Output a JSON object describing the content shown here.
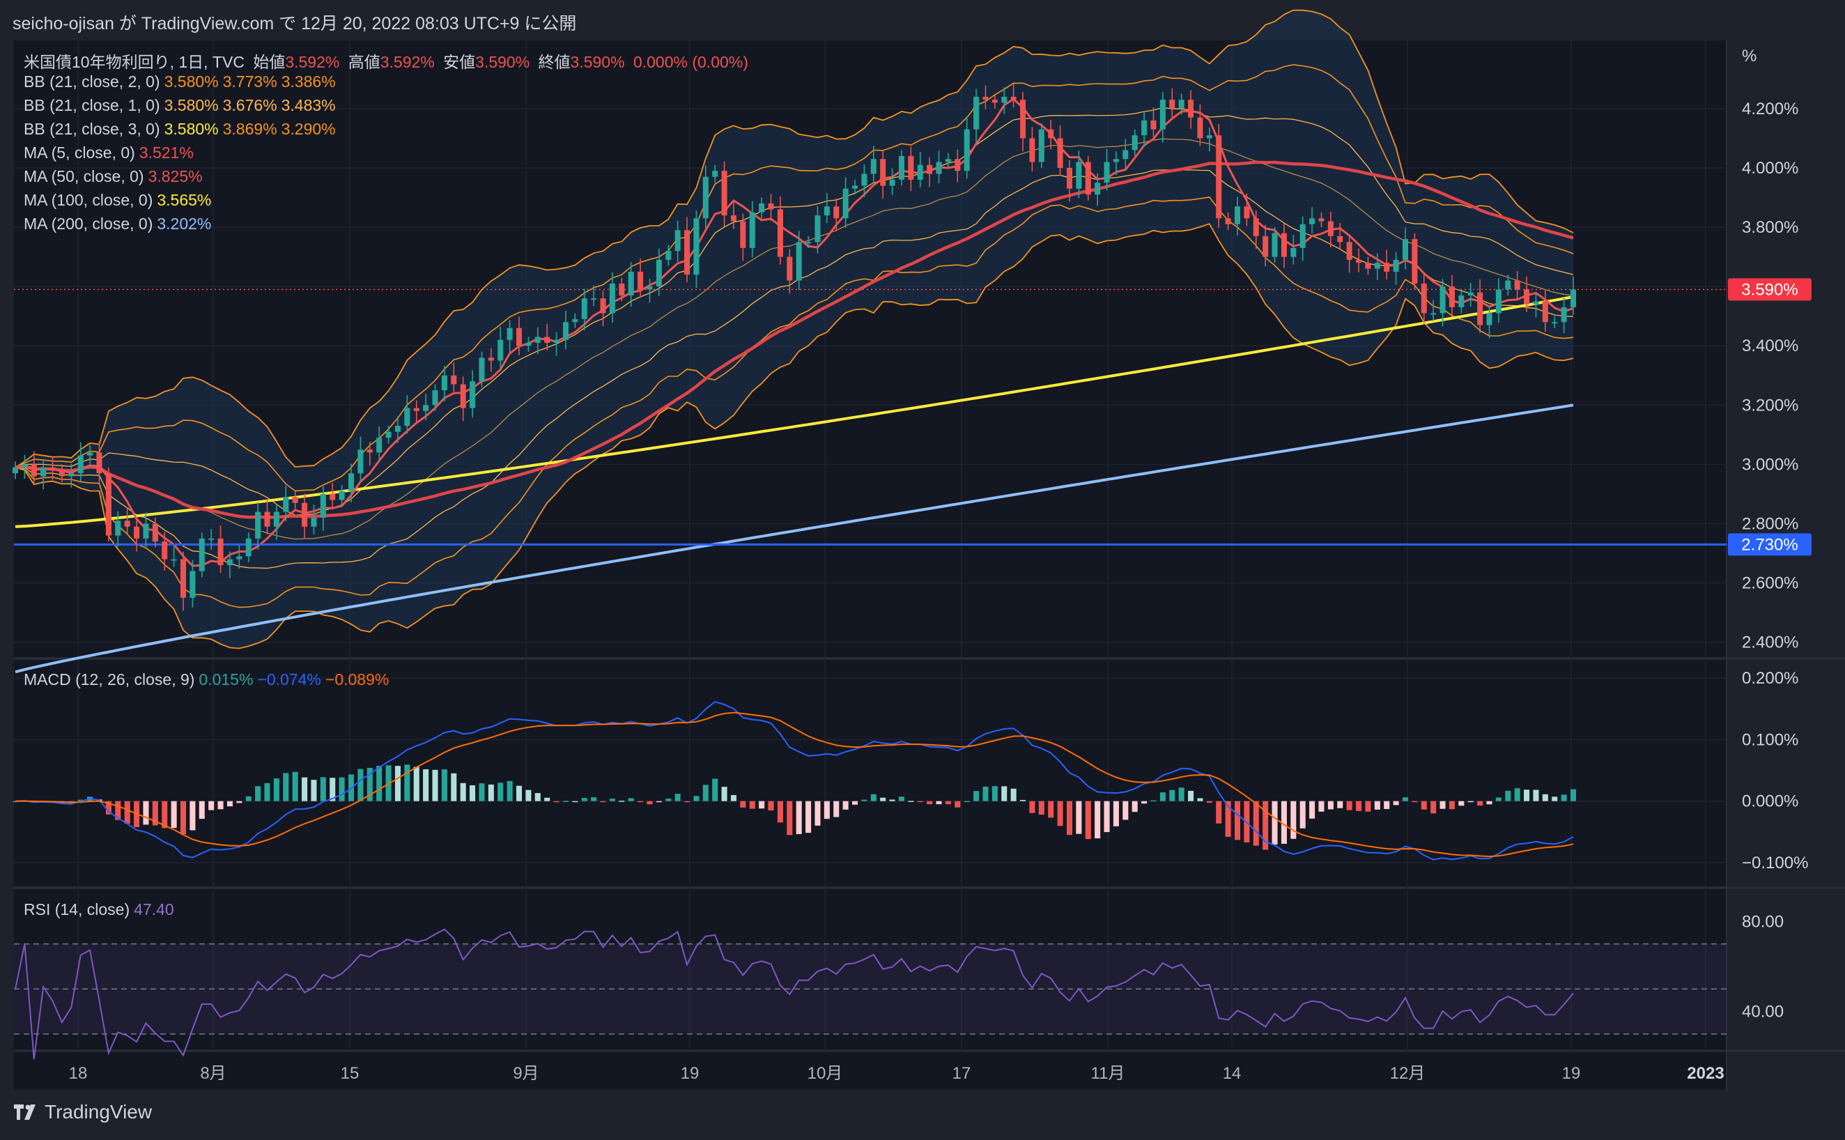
{
  "header": {
    "published": "seicho-ojisan が TradingView.com で 12月 20, 2022 08:03 UTC+9 に公開"
  },
  "legend": {
    "main": {
      "symbol": "米国債10年物利回り, 1日, TVC",
      "open_label": "始値",
      "open": "3.592%",
      "high_label": "高値",
      "high": "3.592%",
      "low_label": "安値",
      "low": "3.590%",
      "close_label": "終値",
      "close": "3.590%",
      "change": "0.000% (0.00%)"
    },
    "bb2": {
      "label": "BB (21, close, 2, 0)",
      "v1": "3.580%",
      "v2": "3.773%",
      "v3": "3.386%"
    },
    "bb1": {
      "label": "BB (21, close, 1, 0)",
      "v1": "3.580%",
      "v2": "3.676%",
      "v3": "3.483%"
    },
    "bb3": {
      "label": "BB (21, close, 3, 0)",
      "v1": "3.580%",
      "v2": "3.869%",
      "v3": "3.290%"
    },
    "ma5": {
      "label": "MA (5, close, 0)",
      "v": "3.521%"
    },
    "ma50": {
      "label": "MA (50, close, 0)",
      "v": "3.825%"
    },
    "ma100": {
      "label": "MA (100, close, 0)",
      "v": "3.565%"
    },
    "ma200": {
      "label": "MA (200, close, 0)",
      "v": "3.202%"
    },
    "macd": {
      "label": "MACD (12, 26, close, 9)",
      "hist": "0.015%",
      "macd": "−0.074%",
      "signal": "−0.089%"
    },
    "rsi": {
      "label": "RSI (14, close)",
      "v": "47.40"
    }
  },
  "footer": {
    "brand": "TradingView"
  },
  "colors": {
    "bg": "#1e222d",
    "up": "#26a69a",
    "down": "#ef5350",
    "ma5": "#ef5350",
    "ma50": "#e0454a",
    "ma100": "#ffeb3b",
    "ma200": "#90bff9",
    "bb": "#f7931a",
    "macd": "#2962ff",
    "signal": "#ff6d00",
    "rsi": "#7e57c2",
    "hline": "#2962ff"
  },
  "chart_data": [
    {
      "type": "candlestick",
      "title": "米国債10年物利回り, 1日, TVC",
      "unit": "%",
      "y_axis": {
        "label": "%",
        "ticks": [
          "4.200%",
          "4.000%",
          "3.800%",
          "3.600%",
          "3.400%",
          "3.200%",
          "3.000%",
          "2.800%",
          "2.600%",
          "2.400%"
        ],
        "range": [
          2.35,
          4.4
        ]
      },
      "x_axis": {
        "ticks": [
          "18",
          "8月",
          "15",
          "9月",
          "19",
          "10月",
          "17",
          "11月",
          "14",
          "12月",
          "19",
          "2023"
        ]
      },
      "last_price_label": "3.590%",
      "horizontal_line": {
        "value": 2.73,
        "label": "2.730%"
      },
      "close": [
        2.99,
        3.0,
        2.96,
        2.99,
        2.98,
        2.96,
        2.97,
        3.03,
        3.04,
        2.97,
        2.76,
        2.81,
        2.79,
        2.75,
        2.8,
        2.74,
        2.68,
        2.68,
        2.55,
        2.64,
        2.75,
        2.75,
        2.66,
        2.68,
        2.69,
        2.75,
        2.84,
        2.79,
        2.84,
        2.89,
        2.87,
        2.79,
        2.82,
        2.9,
        2.88,
        2.91,
        2.97,
        3.05,
        3.04,
        3.09,
        3.11,
        3.13,
        3.19,
        3.18,
        3.2,
        3.25,
        3.3,
        3.27,
        3.19,
        3.28,
        3.36,
        3.35,
        3.42,
        3.46,
        3.4,
        3.41,
        3.43,
        3.41,
        3.42,
        3.48,
        3.49,
        3.56,
        3.56,
        3.51,
        3.61,
        3.57,
        3.65,
        3.59,
        3.6,
        3.69,
        3.72,
        3.79,
        3.64,
        3.83,
        3.97,
        3.99,
        3.84,
        3.82,
        3.73,
        3.85,
        3.88,
        3.86,
        3.7,
        3.62,
        3.75,
        3.75,
        3.84,
        3.87,
        3.83,
        3.93,
        3.94,
        3.98,
        4.03,
        3.94,
        3.96,
        4.04,
        3.96,
        4.01,
        3.98,
        4.02,
        4.03,
        3.99,
        4.13,
        4.24,
        4.23,
        4.22,
        4.24,
        4.23,
        4.1,
        4.02,
        4.13,
        4.1,
        4.0,
        3.93,
        4.02,
        3.91,
        3.95,
        4.02,
        4.03,
        4.06,
        4.11,
        4.16,
        4.13,
        4.23,
        4.2,
        4.23,
        4.17,
        4.1,
        4.11,
        3.83,
        3.81,
        3.87,
        3.83,
        3.77,
        3.7,
        3.78,
        3.7,
        3.73,
        3.81,
        3.83,
        3.82,
        3.77,
        3.75,
        3.69,
        3.68,
        3.66,
        3.68,
        3.65,
        3.69,
        3.76,
        3.61,
        3.51,
        3.51,
        3.6,
        3.53,
        3.57,
        3.58,
        3.47,
        3.51,
        3.59,
        3.62,
        3.59,
        3.54,
        3.55,
        3.48,
        3.48,
        3.53,
        3.59
      ],
      "open": [
        2.97,
        2.99,
        3.0,
        2.96,
        2.99,
        2.98,
        2.96,
        2.97,
        3.03,
        3.04,
        2.97,
        2.76,
        2.81,
        2.79,
        2.75,
        2.8,
        2.74,
        2.68,
        2.68,
        2.55,
        2.64,
        2.75,
        2.75,
        2.66,
        2.68,
        2.69,
        2.75,
        2.84,
        2.79,
        2.84,
        2.89,
        2.87,
        2.79,
        2.82,
        2.9,
        2.88,
        2.91,
        2.97,
        3.05,
        3.04,
        3.09,
        3.11,
        3.13,
        3.19,
        3.18,
        3.2,
        3.25,
        3.3,
        3.27,
        3.19,
        3.28,
        3.36,
        3.35,
        3.42,
        3.46,
        3.4,
        3.41,
        3.43,
        3.41,
        3.42,
        3.48,
        3.49,
        3.56,
        3.56,
        3.51,
        3.61,
        3.57,
        3.65,
        3.59,
        3.6,
        3.69,
        3.72,
        3.79,
        3.64,
        3.83,
        3.97,
        3.99,
        3.84,
        3.82,
        3.73,
        3.85,
        3.88,
        3.86,
        3.7,
        3.62,
        3.75,
        3.75,
        3.84,
        3.87,
        3.83,
        3.93,
        3.94,
        3.98,
        4.03,
        3.94,
        3.96,
        4.04,
        3.96,
        4.01,
        3.98,
        4.02,
        4.03,
        3.99,
        4.13,
        4.24,
        4.23,
        4.22,
        4.24,
        4.23,
        4.1,
        4.02,
        4.13,
        4.1,
        4.0,
        3.93,
        4.02,
        3.91,
        3.95,
        4.02,
        4.03,
        4.06,
        4.11,
        4.16,
        4.13,
        4.23,
        4.2,
        4.23,
        4.17,
        4.1,
        4.11,
        3.83,
        3.81,
        3.87,
        3.83,
        3.77,
        3.7,
        3.78,
        3.7,
        3.73,
        3.81,
        3.83,
        3.82,
        3.77,
        3.75,
        3.69,
        3.68,
        3.66,
        3.68,
        3.65,
        3.69,
        3.76,
        3.61,
        3.51,
        3.51,
        3.6,
        3.53,
        3.57,
        3.58,
        3.47,
        3.51,
        3.59,
        3.62,
        3.59,
        3.54,
        3.55,
        3.48,
        3.48,
        3.53
      ],
      "ma200": [
        2.3,
        3.2
      ]
    },
    {
      "type": "bar_line",
      "title": "MACD (12, 26, close, 9)",
      "y_axis": {
        "ticks": [
          "0.200%",
          "0.100%",
          "0.000%",
          "−0.100%"
        ]
      },
      "latest": {
        "histogram": 0.015,
        "macd": -0.074,
        "signal": -0.089
      }
    },
    {
      "type": "line",
      "title": "RSI (14, close)",
      "y_axis": {
        "ticks": [
          "80.00",
          "40.00"
        ]
      },
      "bands": [
        70,
        50,
        30
      ],
      "latest": 47.4
    }
  ]
}
